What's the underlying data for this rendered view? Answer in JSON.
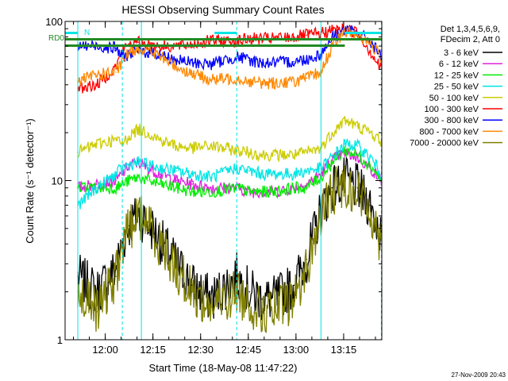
{
  "chart_data": {
    "type": "line",
    "title": "HESSI Observing Summary Count Rates",
    "xlabel": "Start Time (18-May-08 11:47:22)",
    "ylabel": "Count Rate (s⁻¹ detector⁻¹)",
    "yscale": "log",
    "ylim": [
      1,
      100
    ],
    "xlim": [
      "11:47:22",
      "13:27:00"
    ],
    "x_ticks": [
      "12:00",
      "12:15",
      "12:30",
      "12:45",
      "13:00",
      "13:15"
    ],
    "y_ticks": [
      "1",
      "10",
      "100"
    ],
    "legend_header": [
      "Det 1,3,4,5,6,9,",
      "FDecim 2, Att 0"
    ],
    "legend_position": "right",
    "timestamp": "27-Nov-2009 20:43",
    "flags": [
      {
        "label": "RD0",
        "color": "#228b22"
      },
      {
        "label": "N",
        "color": "#00e5e5"
      }
    ],
    "night_intervals_min": [
      [
        0,
        4
      ],
      [
        47,
        54
      ],
      [
        88,
        99.5
      ]
    ],
    "vertical_markers_min": [
      4,
      18,
      24,
      54,
      80.5,
      99.5
    ],
    "series": [
      {
        "name": "3 - 6 keV",
        "color": "#000000",
        "x_min": [
          4,
          10,
          16,
          18,
          20,
          23,
          26,
          30,
          35,
          40,
          46,
          54,
          58,
          62,
          66,
          72,
          76,
          80.5,
          84,
          88,
          92,
          96,
          99.5
        ],
        "values": [
          2.5,
          2.0,
          2.8,
          4.0,
          5.2,
          6.0,
          5.5,
          4.2,
          3.0,
          2.2,
          1.8,
          2.5,
          2.0,
          1.8,
          1.8,
          2.2,
          3.2,
          6.5,
          9.0,
          10.0,
          9.0,
          7.0,
          4.5
        ]
      },
      {
        "name": "6 - 12 keV",
        "color": "#e020e0",
        "x_min": [
          4,
          10,
          16,
          18,
          20,
          23,
          26,
          30,
          35,
          40,
          46,
          54,
          58,
          62,
          66,
          72,
          76,
          80.5,
          84,
          88,
          92,
          96,
          99.5
        ],
        "values": [
          9.0,
          9.5,
          10.0,
          11.0,
          12.5,
          13.0,
          12.0,
          11.0,
          10.0,
          9.5,
          9.0,
          9.0,
          8.5,
          8.5,
          8.5,
          9.0,
          9.5,
          11.0,
          13.5,
          15.0,
          14.0,
          12.0,
          10.0
        ]
      },
      {
        "name": "12 - 25 keV",
        "color": "#00ee00",
        "x_min": [
          4,
          10,
          16,
          18,
          20,
          23,
          26,
          30,
          35,
          40,
          46,
          54,
          58,
          62,
          66,
          72,
          76,
          80.5,
          84,
          88,
          92,
          96,
          99.5
        ],
        "values": [
          9.0,
          9.0,
          9.0,
          9.5,
          10.0,
          10.5,
          10.0,
          9.5,
          9.0,
          8.5,
          8.5,
          9.0,
          8.5,
          8.5,
          8.5,
          9.0,
          9.0,
          10.5,
          13.0,
          15.5,
          14.5,
          12.5,
          10.0
        ]
      },
      {
        "name": "25 - 50 keV",
        "color": "#00e5e5",
        "x_min": [
          4,
          10,
          16,
          18,
          20,
          23,
          26,
          30,
          35,
          40,
          46,
          54,
          58,
          62,
          66,
          72,
          76,
          80.5,
          84,
          88,
          92,
          96,
          99.5
        ],
        "values": [
          7.0,
          9.0,
          11.0,
          12.0,
          12.5,
          13.0,
          12.5,
          12.0,
          11.5,
          11.0,
          10.5,
          12.0,
          11.5,
          11.0,
          11.0,
          11.0,
          11.5,
          12.0,
          14.0,
          17.0,
          16.5,
          14.0,
          11.0
        ]
      },
      {
        "name": "50 - 100 keV",
        "color": "#cccc00",
        "x_min": [
          4,
          10,
          16,
          18,
          20,
          23,
          26,
          30,
          35,
          40,
          46,
          54,
          58,
          62,
          66,
          72,
          76,
          80.5,
          84,
          88,
          92,
          96,
          99.5
        ],
        "values": [
          15.0,
          17.0,
          18.0,
          17.0,
          19.0,
          21.0,
          20.0,
          18.0,
          16.5,
          16.0,
          16.5,
          15.5,
          15.0,
          14.5,
          14.5,
          14.5,
          15.0,
          16.0,
          20.0,
          24.0,
          22.0,
          20.0,
          17.5
        ]
      },
      {
        "name": "100 - 300 keV",
        "color": "#ff0000",
        "x_min": [
          4,
          10,
          16,
          18,
          20,
          23,
          26,
          30,
          35,
          40,
          46,
          54,
          58,
          62,
          66,
          72,
          76,
          80.5,
          84,
          88,
          92,
          96,
          99.5
        ],
        "values": [
          38.0,
          40.0,
          52.0,
          65.0,
          72.0,
          74.0,
          72.0,
          70.0,
          70.0,
          72.0,
          76.0,
          75.0,
          78.0,
          78.0,
          78.0,
          80.0,
          82.0,
          84.0,
          88.0,
          90.0,
          85.0,
          65.0,
          50.0
        ]
      },
      {
        "name": "300 - 800 keV",
        "color": "#0000ff",
        "x_min": [
          4,
          10,
          16,
          18,
          20,
          23,
          26,
          30,
          35,
          40,
          46,
          54,
          58,
          62,
          66,
          72,
          76,
          80.5,
          84,
          88,
          92,
          96,
          99.5
        ],
        "values": [
          70.0,
          70.0,
          68.0,
          60.0,
          62.0,
          65.0,
          64.0,
          62.0,
          57.0,
          55.0,
          54.0,
          60.0,
          57.0,
          55.0,
          55.0,
          56.0,
          58.0,
          62.0,
          80.0,
          88.0,
          85.0,
          75.0,
          60.0
        ]
      },
      {
        "name": "800 - 7000 keV",
        "color": "#ff8800",
        "x_min": [
          4,
          10,
          16,
          18,
          20,
          23,
          26,
          30,
          35,
          40,
          46,
          54,
          58,
          62,
          66,
          72,
          76,
          80.5,
          84,
          88,
          92,
          96,
          99.5
        ],
        "values": [
          42.0,
          46.0,
          48.0,
          55.0,
          64.0,
          68.0,
          66.0,
          60.0,
          52.0,
          47.0,
          43.0,
          44.0,
          42.0,
          41.0,
          41.0,
          42.0,
          44.0,
          48.0,
          70.0,
          86.0,
          84.0,
          72.0,
          60.0
        ]
      },
      {
        "name": "7000 - 20000 keV",
        "color": "#808000",
        "x_min": [
          4,
          10,
          16,
          18,
          20,
          23,
          26,
          30,
          35,
          40,
          46,
          54,
          58,
          62,
          66,
          72,
          76,
          80.5,
          84,
          88,
          92,
          96,
          99.5
        ],
        "values": [
          2.0,
          1.5,
          2.5,
          3.8,
          5.0,
          6.0,
          5.5,
          4.0,
          2.8,
          2.0,
          1.6,
          2.0,
          1.7,
          1.5,
          1.5,
          1.8,
          2.8,
          6.0,
          8.5,
          9.5,
          8.5,
          6.5,
          4.0
        ]
      }
    ]
  }
}
